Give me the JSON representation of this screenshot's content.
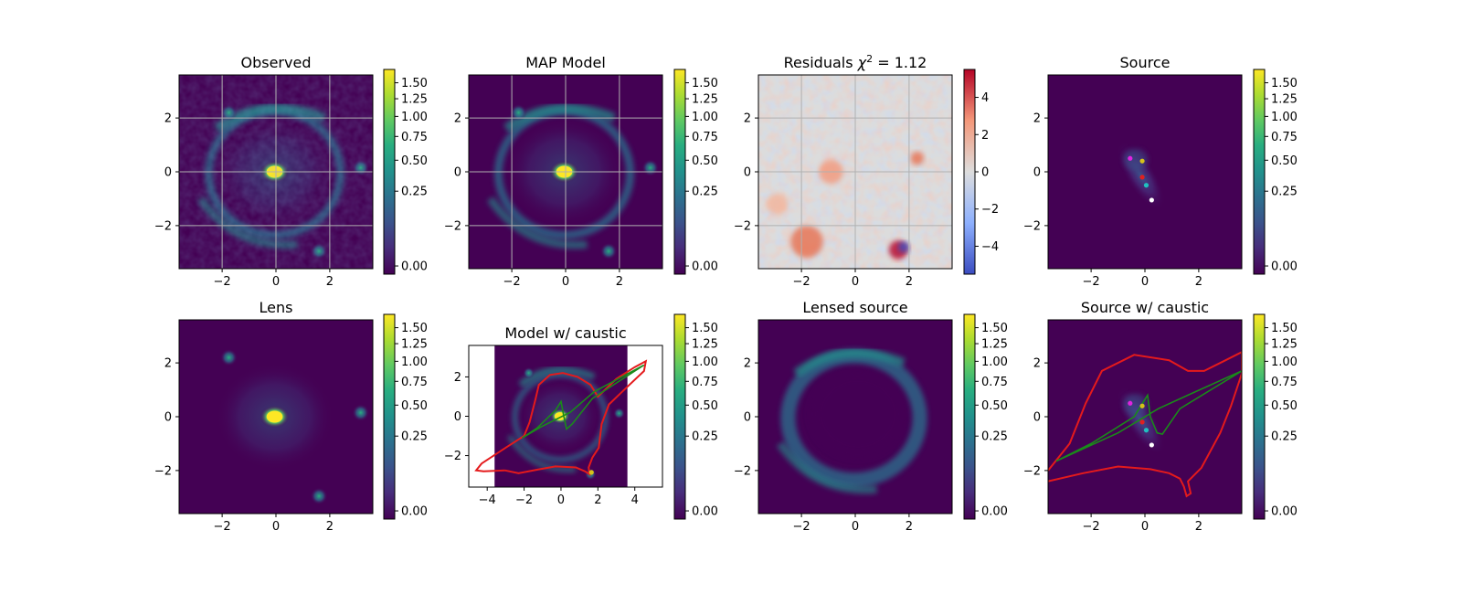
{
  "colorbar_ticks": [
    "0.00",
    "0.25",
    "0.50",
    "0.75",
    "1.00",
    "1.25",
    "1.50"
  ],
  "colorbar_ticks_resid": [
    "−4",
    "−2",
    "0",
    "2",
    "4"
  ],
  "colors": {
    "critical_curve": "#e41a1c",
    "caustic": "#1a8a1a",
    "residual_high": "#b40426",
    "residual_low": "#3b4cc0",
    "colormap": "viridis"
  },
  "chart_data": [
    {
      "type": "heatmap",
      "title": "Observed",
      "colormap": "viridis",
      "colorbar_ticks": [
        "0.00",
        "0.25",
        "0.50",
        "0.75",
        "1.00",
        "1.25",
        "1.50"
      ],
      "x_ticks": [
        "−2",
        "0",
        "2"
      ],
      "y_ticks": [
        "2",
        "0",
        "−2"
      ],
      "xlim": [
        -3.6,
        3.6
      ],
      "ylim": [
        -3.6,
        3.6
      ],
      "grid": true,
      "features": [
        "lens galaxy at (-0.05, 0)",
        "Einstein ring radius ~2.2",
        "bright knots at (-1.8, 2.2), (1.6, -2.95), (3.2, 0.2)"
      ]
    },
    {
      "type": "heatmap",
      "title": "MAP Model",
      "colormap": "viridis",
      "colorbar_ticks": [
        "0.00",
        "0.25",
        "0.50",
        "0.75",
        "1.00",
        "1.25",
        "1.50"
      ],
      "x_ticks": [
        "−2",
        "0",
        "2"
      ],
      "y_ticks": [
        "2",
        "0",
        "−2"
      ],
      "xlim": [
        -3.6,
        3.6
      ],
      "ylim": [
        -3.6,
        3.6
      ],
      "grid": true
    },
    {
      "type": "heatmap",
      "title": "Residuals χ² = 1.12",
      "title_prefix": "Residuals ",
      "title_chi": "χ",
      "title_sup": "2",
      "title_suffix": " = 1.12",
      "chi2": 1.12,
      "colormap": "coolwarm",
      "colorbar_range": [
        -5.5,
        5.5
      ],
      "colorbar_ticks": [
        "−4",
        "−2",
        "0",
        "2",
        "4"
      ],
      "x_ticks": [
        "−2",
        "0",
        "2"
      ],
      "y_ticks": [
        "2",
        "0",
        "−2"
      ],
      "xlim": [
        -3.6,
        3.6
      ],
      "ylim": [
        -3.6,
        3.6
      ],
      "grid": true
    },
    {
      "type": "heatmap",
      "title": "Source",
      "colormap": "viridis",
      "colorbar_ticks": [
        "0.00",
        "0.25",
        "0.50",
        "0.75",
        "1.00",
        "1.25",
        "1.50"
      ],
      "x_ticks": [
        "−2",
        "0",
        "2"
      ],
      "y_ticks": [
        "2",
        "0",
        "−2"
      ],
      "xlim": [
        -3.6,
        3.6
      ],
      "ylim": [
        -3.6,
        3.6
      ],
      "grid": false,
      "source_points": [
        {
          "x": -0.55,
          "y": 0.5,
          "color": "#e024e0"
        },
        {
          "x": -0.1,
          "y": 0.4,
          "color": "#d6c21a"
        },
        {
          "x": -0.1,
          "y": -0.2,
          "color": "#e02020"
        },
        {
          "x": 0.05,
          "y": -0.5,
          "color": "#20c0c0"
        },
        {
          "x": 0.25,
          "y": -1.05,
          "color": "#ffffff"
        }
      ]
    },
    {
      "type": "heatmap",
      "title": "Lens",
      "colormap": "viridis",
      "colorbar_ticks": [
        "0.00",
        "0.25",
        "0.50",
        "0.75",
        "1.00",
        "1.25",
        "1.50"
      ],
      "x_ticks": [
        "−2",
        "0",
        "2"
      ],
      "y_ticks": [
        "2",
        "0",
        "−2"
      ],
      "xlim": [
        -3.6,
        3.6
      ],
      "ylim": [
        -3.6,
        3.6
      ],
      "grid": false
    },
    {
      "type": "heatmap",
      "title": "Model w/ caustic",
      "colormap": "viridis",
      "colorbar_ticks": [
        "0.00",
        "0.25",
        "0.50",
        "0.75",
        "1.00",
        "1.25",
        "1.50"
      ],
      "x_ticks": [
        "−4",
        "−2",
        "0",
        "2",
        "4"
      ],
      "y_ticks": [
        "2",
        "0",
        "−2"
      ],
      "xlim": [
        -5.0,
        5.5
      ],
      "ylim": [
        -3.6,
        3.6
      ],
      "image_extent": [
        -3.6,
        3.6
      ],
      "grid": false,
      "critical_curve": [
        [
          -3.05,
          -2.75
        ],
        [
          -4.2,
          -2.8
        ],
        [
          -4.6,
          -2.75
        ],
        [
          -4.3,
          -2.4
        ],
        [
          -3.0,
          -1.6
        ],
        [
          -2.0,
          -1.0
        ],
        [
          -1.7,
          -0.3
        ],
        [
          -1.4,
          0.8
        ],
        [
          -1.2,
          1.6
        ],
        [
          -0.6,
          2.1
        ],
        [
          0.1,
          2.2
        ],
        [
          0.9,
          2.0
        ],
        [
          1.6,
          1.6
        ],
        [
          2.0,
          1.0
        ],
        [
          3.0,
          1.9
        ],
        [
          4.0,
          2.5
        ],
        [
          4.6,
          2.8
        ],
        [
          4.5,
          2.3
        ],
        [
          3.6,
          1.5
        ],
        [
          2.6,
          0.6
        ],
        [
          2.2,
          -0.4
        ],
        [
          2.05,
          -1.6
        ],
        [
          1.7,
          -2.1
        ],
        [
          1.5,
          -2.6
        ],
        [
          1.55,
          -2.95
        ],
        [
          1.3,
          -2.8
        ],
        [
          0.8,
          -2.6
        ],
        [
          -0.3,
          -2.55
        ],
        [
          -1.2,
          -2.7
        ],
        [
          -2.3,
          -2.9
        ],
        [
          -3.05,
          -2.75
        ]
      ],
      "caustic": [
        [
          -2.1,
          -1.1
        ],
        [
          -1.3,
          -0.6
        ],
        [
          -0.3,
          0.3
        ],
        [
          0.0,
          0.75
        ],
        [
          0.15,
          0.0
        ],
        [
          0.3,
          -0.65
        ],
        [
          0.6,
          -0.4
        ],
        [
          1.7,
          0.9
        ],
        [
          4.5,
          2.6
        ],
        [
          1.8,
          1.25
        ],
        [
          0.5,
          0.2
        ],
        [
          -1.1,
          -0.55
        ],
        [
          -2.1,
          -1.1
        ]
      ],
      "points": [
        {
          "x": 1.65,
          "y": -2.85,
          "color": "#d6c21a"
        }
      ]
    },
    {
      "type": "heatmap",
      "title": "Lensed source",
      "colormap": "viridis",
      "colorbar_ticks": [
        "0.00",
        "0.25",
        "0.50",
        "0.75",
        "1.00",
        "1.25",
        "1.50"
      ],
      "x_ticks": [
        "−2",
        "0",
        "2"
      ],
      "y_ticks": [
        "2",
        "0",
        "−2"
      ],
      "xlim": [
        -3.6,
        3.6
      ],
      "ylim": [
        -3.6,
        3.6
      ],
      "grid": false
    },
    {
      "type": "heatmap",
      "title": "Source w/ caustic",
      "colormap": "viridis",
      "colorbar_ticks": [
        "0.00",
        "0.25",
        "0.50",
        "0.75",
        "1.00",
        "1.25",
        "1.50"
      ],
      "x_ticks": [
        "−2",
        "0",
        "2"
      ],
      "y_ticks": [
        "2",
        "0",
        "−2"
      ],
      "xlim": [
        -3.6,
        3.6
      ],
      "ylim": [
        -3.6,
        3.6
      ],
      "grid": false,
      "critical_curve": [
        [
          -3.6,
          -2.4
        ],
        [
          -2.3,
          -2.1
        ],
        [
          -1.0,
          -1.85
        ],
        [
          0.2,
          -1.95
        ],
        [
          0.9,
          -2.1
        ],
        [
          1.3,
          -2.3
        ],
        [
          1.45,
          -2.6
        ],
        [
          1.55,
          -2.95
        ],
        [
          1.7,
          -2.85
        ],
        [
          1.6,
          -2.4
        ],
        [
          2.1,
          -1.9
        ],
        [
          2.8,
          -0.6
        ],
        [
          3.2,
          0.4
        ],
        [
          3.6,
          1.6
        ],
        [
          3.6,
          2.4
        ],
        [
          3.0,
          2.1
        ],
        [
          2.2,
          1.7
        ],
        [
          1.6,
          1.7
        ],
        [
          0.9,
          2.1
        ],
        [
          -0.4,
          2.3
        ],
        [
          -1.6,
          1.7
        ],
        [
          -2.2,
          0.5
        ],
        [
          -2.8,
          -1.0
        ],
        [
          -3.6,
          -2.0
        ]
      ],
      "caustic": [
        [
          -3.3,
          -1.65
        ],
        [
          -2.0,
          -1.0
        ],
        [
          -0.4,
          0.0
        ],
        [
          0.1,
          0.8
        ],
        [
          0.2,
          0.0
        ],
        [
          0.45,
          -0.6
        ],
        [
          0.65,
          -0.65
        ],
        [
          1.3,
          0.3
        ],
        [
          3.6,
          1.7
        ],
        [
          1.7,
          0.85
        ],
        [
          0.5,
          0.3
        ],
        [
          -1.0,
          -0.6
        ],
        [
          -3.3,
          -1.65
        ]
      ],
      "source_points": [
        {
          "x": -0.55,
          "y": 0.5,
          "color": "#e024e0"
        },
        {
          "x": -0.1,
          "y": 0.4,
          "color": "#d6c21a"
        },
        {
          "x": -0.1,
          "y": -0.2,
          "color": "#e02020"
        },
        {
          "x": 0.05,
          "y": -0.5,
          "color": "#20c0c0"
        },
        {
          "x": 0.25,
          "y": -1.05,
          "color": "#ffffff"
        }
      ]
    }
  ]
}
